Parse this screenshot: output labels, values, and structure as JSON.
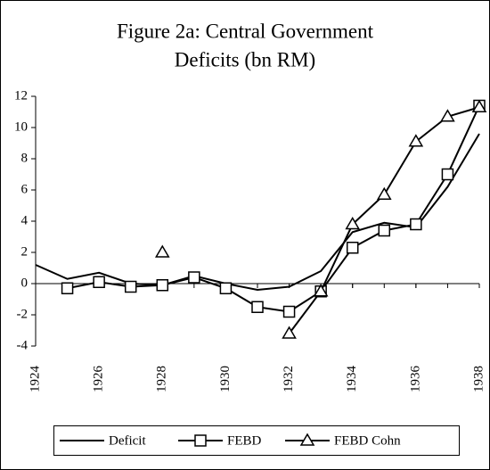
{
  "chart_data": {
    "type": "line",
    "title": [
      "Figure 2a: Central Government",
      "Deficits (bn RM)"
    ],
    "x": [
      1924,
      1925,
      1926,
      1927,
      1928,
      1929,
      1930,
      1931,
      1932,
      1933,
      1934,
      1935,
      1936,
      1937,
      1938
    ],
    "xlim": [
      1924,
      1938
    ],
    "xticks": [
      1924,
      1926,
      1928,
      1930,
      1932,
      1934,
      1936,
      1938
    ],
    "ylim": [
      -4,
      12
    ],
    "yticks": [
      -4,
      -2,
      0,
      2,
      4,
      6,
      8,
      10,
      12
    ],
    "legend": "bottom",
    "series": [
      {
        "name": "Deficit",
        "color": "#000000",
        "marker": "none",
        "values": [
          1.2,
          0.3,
          0.7,
          0.0,
          -0.1,
          0.5,
          0.0,
          -0.4,
          -0.2,
          0.8,
          3.3,
          3.9,
          3.6,
          6.2,
          9.6
        ]
      },
      {
        "name": "FEBD",
        "color": "#000000",
        "marker": "square",
        "values": [
          null,
          -0.3,
          0.1,
          -0.2,
          -0.1,
          0.4,
          -0.3,
          -1.5,
          -1.8,
          -0.5,
          2.3,
          3.4,
          3.8,
          7.0,
          11.4
        ]
      },
      {
        "name": "FEBD Cohn",
        "color": "#000000",
        "marker": "triangle",
        "values": [
          null,
          null,
          null,
          null,
          2.0,
          null,
          null,
          null,
          -3.2,
          -0.5,
          3.8,
          5.7,
          9.1,
          10.7,
          11.3
        ]
      }
    ]
  }
}
